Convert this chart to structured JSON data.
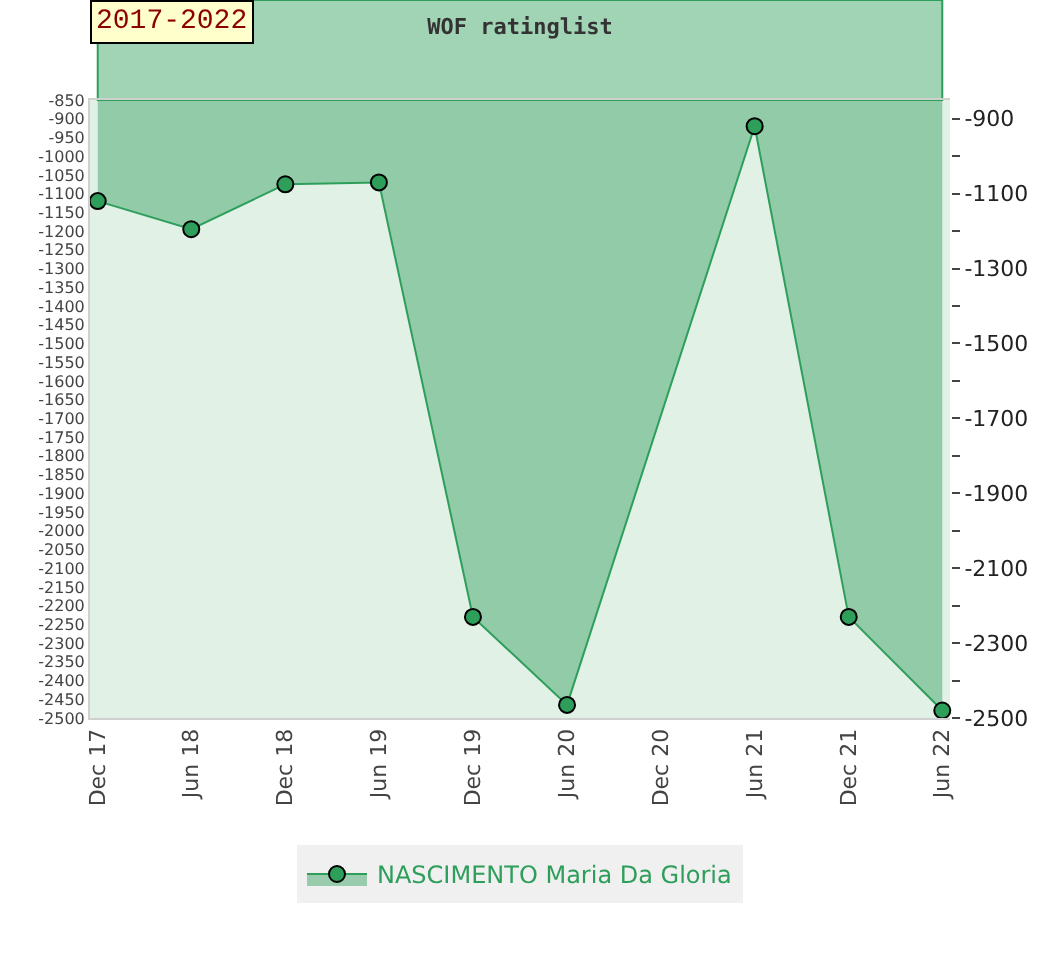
{
  "chart_data": {
    "type": "area",
    "title": "WOF ratinglist",
    "annotations": [
      "2017-2022"
    ],
    "x": [
      "2017-12",
      "2018-06",
      "2018-12",
      "2019-06",
      "2019-12",
      "2020-06",
      "2021-06",
      "2021-12",
      "2022-06"
    ],
    "series": [
      {
        "name": "NASCIMENTO Maria Da Gloria",
        "color": "#2e9e5b",
        "values": [
          -1120,
          -1195,
          -1075,
          -1070,
          -2230,
          -2465,
          -920,
          -2230,
          -2480
        ]
      }
    ],
    "xlim": [
      "2017-11-16",
      "2022-06-16"
    ],
    "xticks": [
      {
        "value": "2017-12",
        "label": "Dec 17"
      },
      {
        "value": "2018-06",
        "label": "Jun 18"
      },
      {
        "value": "2018-12",
        "label": "Dec 18"
      },
      {
        "value": "2019-06",
        "label": "Jun 19"
      },
      {
        "value": "2019-12",
        "label": "Dec 19"
      },
      {
        "value": "2020-06",
        "label": "Jun 20"
      },
      {
        "value": "2020-12",
        "label": "Dec 20"
      },
      {
        "value": "2021-06",
        "label": "Jun 21"
      },
      {
        "value": "2021-12",
        "label": "Dec 21"
      },
      {
        "value": "2022-06",
        "label": "Jun 22"
      }
    ],
    "ylim": [
      -2500,
      -850
    ],
    "yticks": [
      -850,
      -900,
      -950,
      -1000,
      -1050,
      -1100,
      -1150,
      -1200,
      -1250,
      -1300,
      -1350,
      -1400,
      -1450,
      -1500,
      -1550,
      -1600,
      -1650,
      -1700,
      -1750,
      -1800,
      -1850,
      -1900,
      -1950,
      -2000,
      -2050,
      -2100,
      -2150,
      -2200,
      -2250,
      -2300,
      -2350,
      -2400,
      -2450,
      -2500
    ],
    "y2lim": [
      -2500,
      -850
    ],
    "y2ticks": [
      -900,
      {
        "value": -1000,
        "label": null
      },
      -1100,
      {
        "value": -1200,
        "label": null
      },
      -1300,
      {
        "value": -1400,
        "label": null
      },
      -1500,
      {
        "value": -1600,
        "label": null
      },
      -1700,
      {
        "value": -1800,
        "label": null
      },
      -1900,
      {
        "value": -2000,
        "label": null
      },
      -2100,
      {
        "value": -2200,
        "label": null
      },
      -2300,
      {
        "value": -2400,
        "label": null
      },
      -2500
    ],
    "grid": false,
    "legend": "bottom",
    "marker": "circle"
  }
}
